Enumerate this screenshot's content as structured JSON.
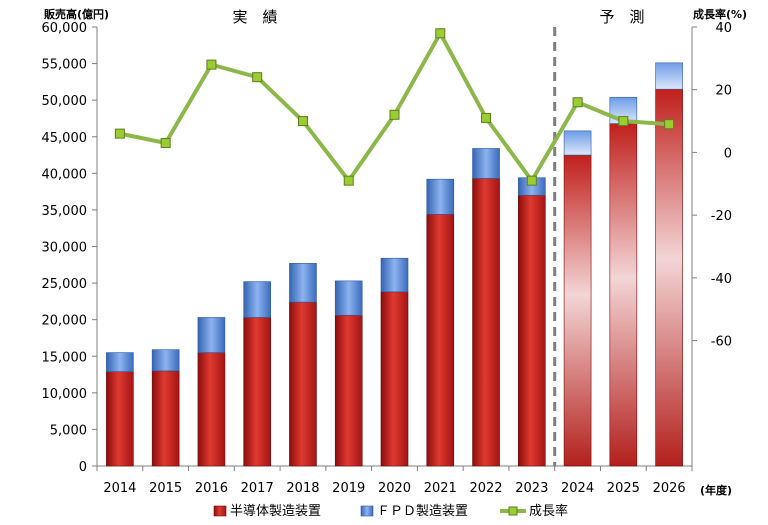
{
  "chart_data": {
    "type": "bar",
    "ylabel": "販売高(億円)",
    "y2label": "成長率(%)",
    "xunit": "(年度)",
    "labels": {
      "actual": "実　績",
      "forecast": "予　測"
    },
    "categories": [
      "2014",
      "2015",
      "2016",
      "2017",
      "2018",
      "2019",
      "2020",
      "2021",
      "2022",
      "2023",
      "2024",
      "2025",
      "2026"
    ],
    "forecast_start_index": 10,
    "ylim": [
      0,
      60000
    ],
    "y_ticks": [
      "0",
      "5,000",
      "10,000",
      "15,000",
      "20,000",
      "25,000",
      "30,000",
      "35,000",
      "40,000",
      "45,000",
      "50,000",
      "55,000",
      "60,000"
    ],
    "y2lim": [
      -100,
      40
    ],
    "y2_ticks": [
      "40",
      "20",
      "0",
      "-20",
      "-40",
      "-60"
    ],
    "y2_tick_values": [
      40,
      20,
      0,
      -20,
      -40,
      -60
    ],
    "series": [
      {
        "name": "半導体製造装置",
        "kind": "bar",
        "color": "#c0201c",
        "values": [
          12900,
          13000,
          15500,
          20300,
          22400,
          20600,
          23800,
          34400,
          39300,
          37000,
          42500,
          46800,
          51500
        ]
      },
      {
        "name": "ＦＰＤ製造装置",
        "kind": "bar",
        "color": "#4f86d6",
        "values": [
          2600,
          2900,
          4800,
          4900,
          5300,
          4700,
          4600,
          4800,
          4100,
          2400,
          3300,
          3600,
          3600
        ]
      },
      {
        "name": "成長率",
        "kind": "line",
        "axis": "right",
        "color": "#8cb84a",
        "values": [
          6,
          3,
          28,
          24,
          10,
          -9,
          12,
          38,
          11,
          -9,
          16,
          10,
          9
        ]
      }
    ],
    "legend_position": "bottom",
    "grid": false
  }
}
